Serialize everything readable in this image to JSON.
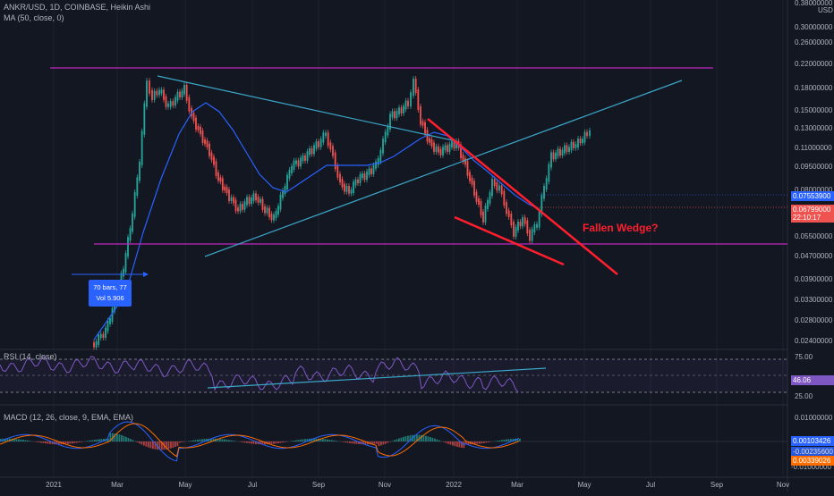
{
  "header": {
    "symbol_line": "ANKR/USD, 1D, COINBASE, Heikin Ashi",
    "ma_line": "MA (50, close, 0)",
    "rsi_line": "RSI (14, close)",
    "macd_line": "MACD (12, 26, close, 9, EMA, EMA)"
  },
  "price_axis": {
    "currency": "USD",
    "ticks": [
      "0.30000000",
      "0.26000000",
      "0.22000000",
      "0.18000000",
      "0.15000000",
      "0.13000000",
      "0.11000000",
      "0.09500000",
      "0.08000000",
      "0.05500000",
      "0.04700000",
      "0.03900000",
      "0.03300000",
      "0.02800000",
      "0.02400000"
    ],
    "partial_top_tick": "0.38000000"
  },
  "price_labels": {
    "ma_value": "0.07553900",
    "last_price": "0.06799000",
    "countdown": "22:10:17"
  },
  "rsi_axis": {
    "ticks": [
      "75.00",
      "25.00"
    ],
    "current": "46.06"
  },
  "macd_axis": {
    "ticks": [
      "0.01000000",
      "-0.01000000"
    ],
    "macd_value": "0.00103426",
    "signal_value": "-0.00235600",
    "hist_value": "0.00339026"
  },
  "time_axis": {
    "labels": [
      "2021",
      "Mar",
      "May",
      "Jul",
      "Sep",
      "Nov",
      "2022",
      "Mar",
      "May",
      "Jul",
      "Sep",
      "Nov"
    ]
  },
  "annotations": {
    "wedge_label": "Fallen Wedge?",
    "measure_bars": "70 bars, 77",
    "measure_vol": "Vol 5.906"
  },
  "colors": {
    "background": "#131722",
    "up_candle": "#26a69a",
    "down_candle": "#ef5350",
    "ma_line": "#2962ff",
    "trend_line": "#3ba6c7",
    "wedge": "#ff1e2d",
    "horizontal_level": "#c026c0",
    "rsi_line": "#7e57c2",
    "macd_line": "#2962ff",
    "signal_line": "#ff6d00",
    "wedge_label": "#ff1e2d"
  }
}
